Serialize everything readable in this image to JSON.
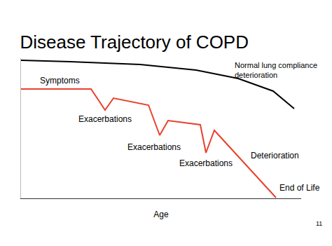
{
  "chart_data": {
    "type": "line",
    "title": "Disease Trajectory of COPD",
    "x_label": "Age",
    "series": [
      {
        "color": "#000000",
        "x": [
          0,
          17.5,
          42.5,
          62.5,
          77.5,
          90,
          97.5
        ],
        "values": [
          98.5,
          97.5,
          95.5,
          91.5,
          85.5,
          76.5,
          64
        ]
      },
      {
        "color": "#e8412c",
        "x": [
          0,
          25,
          30,
          33,
          45.5,
          49.5,
          52.5,
          64,
          66,
          69,
          91
        ],
        "values": [
          78,
          78,
          63,
          71.5,
          66.5,
          45,
          55.5,
          52.5,
          32.5,
          48.5,
          0.5
        ]
      }
    ],
    "annotations": [
      "Normal lung compliance deterioration",
      "Symptoms",
      "Exacerbations",
      "Exacerbations",
      "Exacerbations",
      "Deterioration",
      "End of Life"
    ],
    "slide_number": "11",
    "xlim": [
      0,
      100
    ],
    "ylim": [
      0,
      100
    ],
    "xticks": [],
    "yticks": [],
    "tick_labels": false,
    "grid": false
  }
}
